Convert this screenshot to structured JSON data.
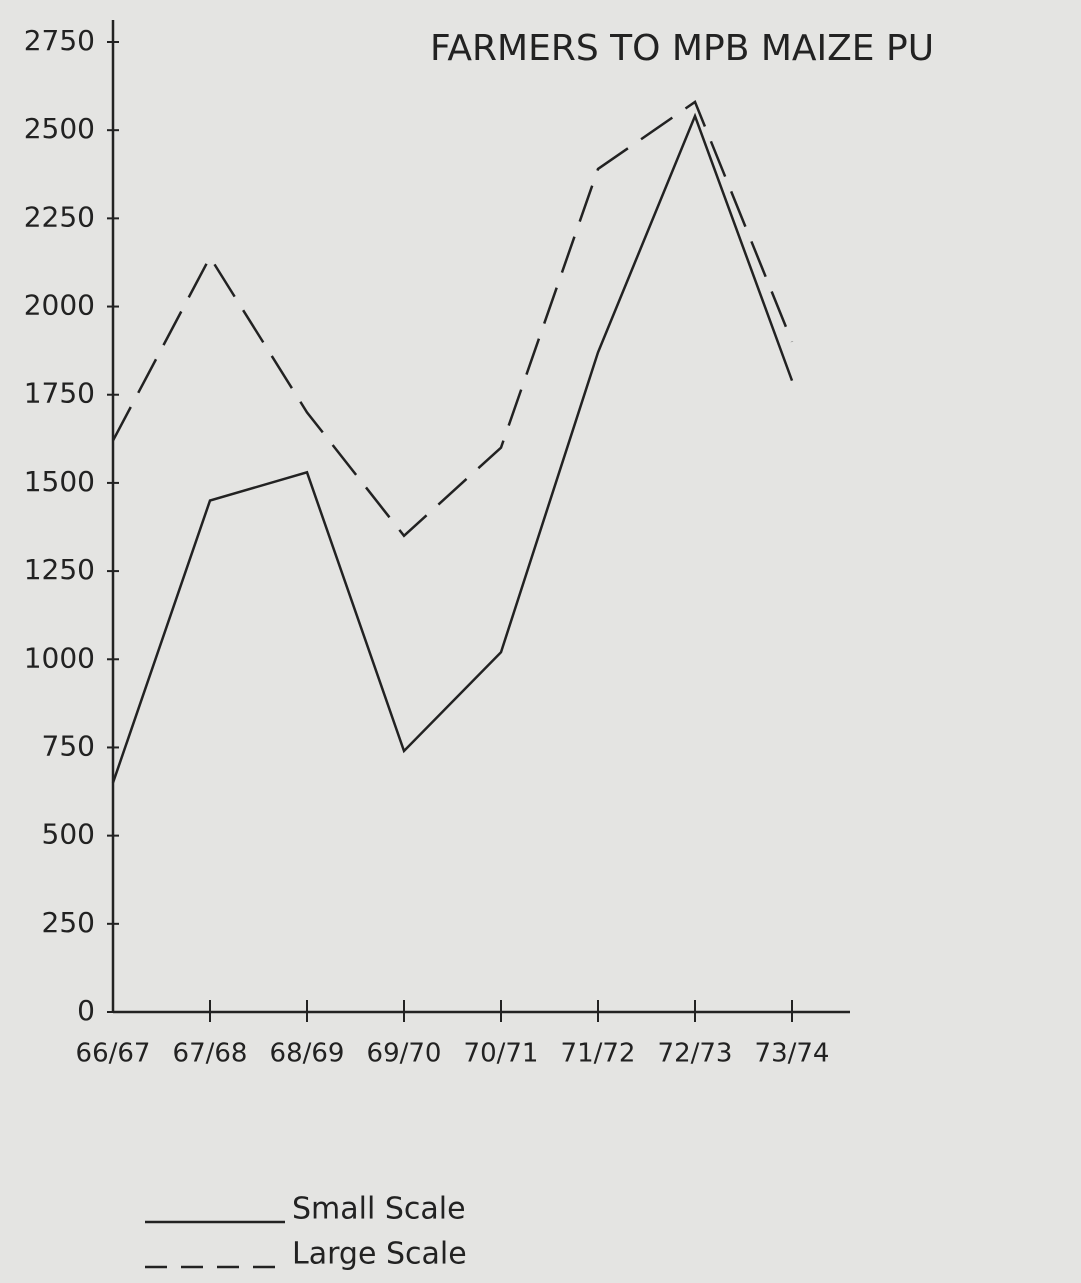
{
  "chart_data": {
    "type": "line",
    "title": "FARMERS TO MPB MAIZE PU",
    "categories": [
      "66/67",
      "67/68",
      "68/69",
      "69/70",
      "70/71",
      "71/72",
      "72/73",
      "73/74"
    ],
    "series": [
      {
        "name": "Small Scale",
        "color": "#222222",
        "dash": false,
        "values": [
          650,
          1450,
          1530,
          740,
          1020,
          1870,
          2540,
          1790
        ]
      },
      {
        "name": "Large Scale",
        "color": "#222222",
        "dash": true,
        "values": [
          1620,
          2140,
          1700,
          1350,
          1600,
          2390,
          2580,
          1900
        ]
      }
    ],
    "ylim": [
      0,
      2750
    ],
    "yticks": [
      0,
      250,
      500,
      750,
      1000,
      1250,
      1500,
      1750,
      2000,
      2250,
      2500,
      2750
    ],
    "grid": false
  }
}
